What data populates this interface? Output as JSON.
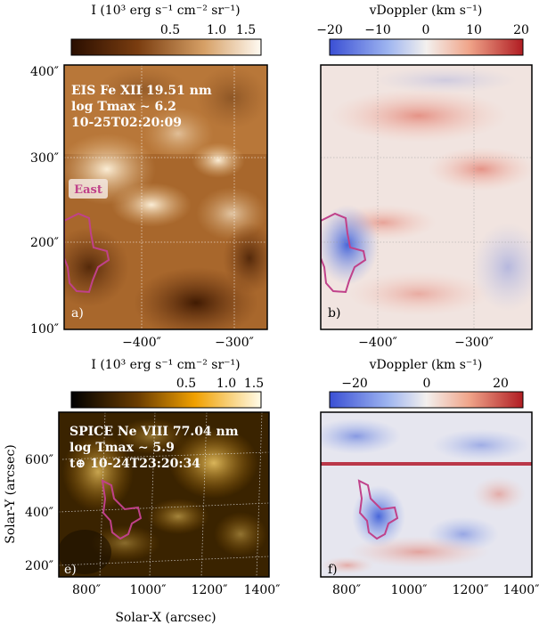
{
  "figure": {
    "colorbars": {
      "eis_intensity": {
        "title": "I (10³ erg s⁻¹ cm⁻² sr⁻¹)",
        "ticks": [
          "0.5",
          "1.0",
          "1.5"
        ],
        "colormap": "brown-white"
      },
      "eis_doppler": {
        "title": "vDoppler (km s⁻¹)",
        "ticks": [
          "−20",
          "−10",
          "0",
          "10",
          "20"
        ],
        "colormap": "blue-white-red"
      },
      "spice_intensity": {
        "title": "I (10³ erg s⁻¹ cm⁻² sr⁻¹)",
        "ticks": [
          "0.5",
          "1.0",
          "1.5"
        ],
        "colormap": "black-orange-white"
      },
      "spice_doppler": {
        "title": "vDoppler (km s⁻¹)",
        "ticks": [
          "−20",
          "0",
          "20"
        ],
        "colormap": "blue-white-red"
      }
    },
    "panels": {
      "a": {
        "letter": "a)",
        "annotation": [
          "EIS Fe XII 19.51 nm",
          "log Tmax ∼ 6.2",
          "10-25T02:20:09"
        ],
        "region_label": "East",
        "yticks": [
          "400″",
          "300″",
          "200″",
          "100″"
        ],
        "xticks": [
          "−400″",
          "−300″"
        ]
      },
      "b": {
        "letter": "b)",
        "xticks": [
          "−400″",
          "−300″"
        ]
      },
      "e": {
        "letter": "e)",
        "annotation": [
          "SPICE Ne VIII 77.04 nm",
          "log Tmax ∼ 5.9",
          "t⊕ 10-24T23:20:34"
        ],
        "yticks": [
          "600″",
          "400″",
          "200″"
        ],
        "xticks": [
          "800″",
          "1000″",
          "1200″",
          "1400″"
        ],
        "xlabel": "Solar-X (arcsec)",
        "ylabel": "Solar-Y (arcsec)"
      },
      "f": {
        "letter": "f)",
        "xticks": [
          "800″",
          "1000″",
          "1200″",
          "1400″"
        ]
      }
    },
    "colors": {
      "contour": "#c0418a",
      "red_dark": "#b2182b",
      "blue_dark": "#2c4fd6"
    }
  }
}
